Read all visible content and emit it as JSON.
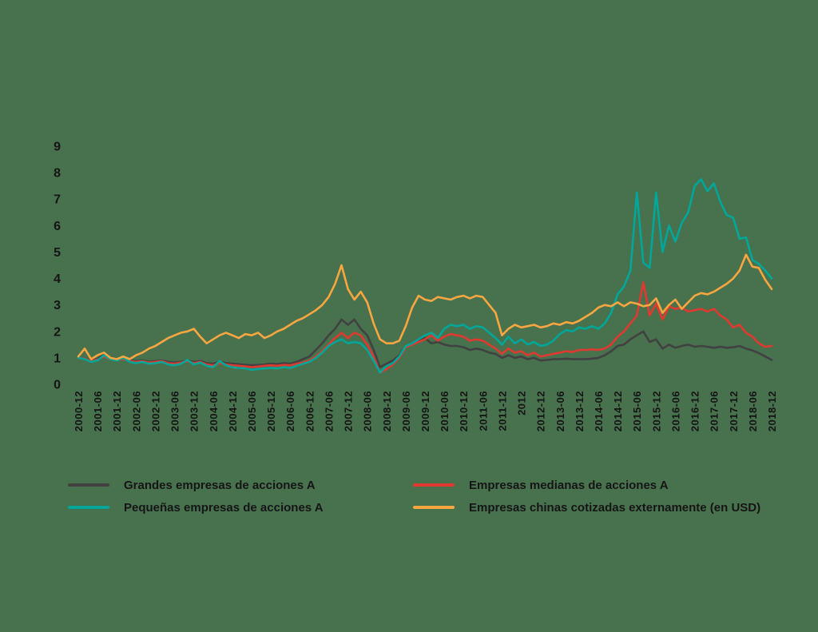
{
  "background_color": "#48714E",
  "text_color": "#151515",
  "legend": {
    "items": [
      {
        "id": "grandes",
        "label": "Grandes empresas de acciones A",
        "color": "#414141"
      },
      {
        "id": "medianas",
        "label": "Empresas medianas de acciones A",
        "color": "#E0392F"
      },
      {
        "id": "pequenas",
        "label": "Pequeñas empresas de acciones A",
        "color": "#00A79B"
      },
      {
        "id": "chinas",
        "label": "Empresas chinas cotizadas externamente (en USD)",
        "color": "#F9A640"
      }
    ]
  },
  "chart_data": {
    "type": "line",
    "title": "",
    "xlabel": "",
    "ylabel": "",
    "grid": false,
    "legend_position": "bottom",
    "ylim": [
      0,
      9
    ],
    "y_ticks": [
      0,
      1,
      2,
      3,
      4,
      5,
      6,
      7,
      8,
      9
    ],
    "x_start": "2000-12",
    "x_end": "2018-12",
    "x_step_months": 2,
    "x_tick_every_months": 6,
    "x_tick_labels": [
      "2000-12",
      "2001-06",
      "2001-12",
      "2002-06",
      "2002-12",
      "2003-06",
      "2003-12",
      "2004-06",
      "2004-12",
      "2005-06",
      "2005-12",
      "2006-06",
      "2006-12",
      "2007-06",
      "2007-12",
      "2008-06",
      "2008-12",
      "2009-06",
      "2009-12",
      "2010-06",
      "2010-12",
      "2011-06",
      "2011-12",
      "2012",
      "2012-12",
      "2013-06",
      "2013-12",
      "2014-06",
      "2014-12",
      "2015-06",
      "2015-12",
      "2016-06",
      "2016-12",
      "2017-06",
      "2017-12",
      "2018-06",
      "2018-12"
    ],
    "series": [
      {
        "id": "grandes",
        "name": "Grandes empresas de acciones A",
        "color": "#414141",
        "values": [
          1.0,
          0.97,
          0.9,
          0.95,
          1.15,
          1.0,
          0.95,
          0.97,
          0.9,
          0.88,
          0.9,
          0.85,
          0.88,
          0.9,
          0.85,
          0.82,
          0.85,
          0.9,
          0.85,
          0.88,
          0.8,
          0.78,
          0.85,
          0.8,
          0.78,
          0.76,
          0.74,
          0.72,
          0.73,
          0.75,
          0.78,
          0.76,
          0.8,
          0.78,
          0.85,
          0.95,
          1.05,
          1.3,
          1.55,
          1.85,
          2.1,
          2.45,
          2.25,
          2.45,
          2.1,
          1.85,
          1.3,
          0.65,
          0.78,
          0.9,
          1.1,
          1.45,
          1.55,
          1.65,
          1.75,
          1.55,
          1.6,
          1.5,
          1.45,
          1.45,
          1.4,
          1.3,
          1.35,
          1.3,
          1.2,
          1.15,
          1.0,
          1.1,
          1.0,
          1.05,
          0.95,
          1.0,
          0.9,
          0.92,
          0.95,
          0.95,
          0.97,
          0.95,
          0.95,
          0.95,
          0.97,
          1.0,
          1.1,
          1.25,
          1.45,
          1.5,
          1.7,
          1.85,
          2.0,
          1.6,
          1.7,
          1.35,
          1.5,
          1.38,
          1.45,
          1.5,
          1.42,
          1.45,
          1.42,
          1.38,
          1.42,
          1.38,
          1.4,
          1.45,
          1.35,
          1.28,
          1.18,
          1.05,
          0.92
        ]
      },
      {
        "id": "medianas",
        "name": "Empresas medianas de acciones A",
        "color": "#E0392F",
        "values": [
          1.0,
          0.97,
          0.88,
          0.93,
          1.05,
          0.95,
          0.92,
          0.95,
          0.88,
          0.85,
          0.88,
          0.82,
          0.85,
          0.88,
          0.8,
          0.78,
          0.82,
          0.88,
          0.8,
          0.85,
          0.75,
          0.72,
          0.8,
          0.75,
          0.72,
          0.7,
          0.68,
          0.65,
          0.67,
          0.7,
          0.72,
          0.7,
          0.73,
          0.72,
          0.78,
          0.82,
          0.9,
          1.05,
          1.25,
          1.5,
          1.75,
          1.95,
          1.75,
          1.95,
          1.85,
          1.5,
          1.05,
          0.45,
          0.57,
          0.75,
          1.0,
          1.4,
          1.5,
          1.6,
          1.7,
          1.85,
          1.65,
          1.8,
          1.9,
          1.85,
          1.8,
          1.65,
          1.7,
          1.65,
          1.5,
          1.35,
          1.15,
          1.35,
          1.2,
          1.25,
          1.1,
          1.2,
          1.05,
          1.1,
          1.15,
          1.2,
          1.25,
          1.22,
          1.3,
          1.3,
          1.32,
          1.3,
          1.35,
          1.5,
          1.8,
          2.0,
          2.3,
          2.6,
          3.85,
          2.6,
          3.05,
          2.45,
          2.95,
          2.85,
          2.9,
          2.75,
          2.8,
          2.85,
          2.75,
          2.85,
          2.6,
          2.45,
          2.15,
          2.25,
          1.95,
          1.8,
          1.55,
          1.42,
          1.45
        ]
      },
      {
        "id": "pequenas",
        "name": "Pequeñas empresas de acciones A",
        "color": "#00A79B",
        "values": [
          1.0,
          0.95,
          0.85,
          0.9,
          1.1,
          0.95,
          0.9,
          1.0,
          0.85,
          0.8,
          0.85,
          0.78,
          0.8,
          0.85,
          0.75,
          0.72,
          0.78,
          0.92,
          0.75,
          0.82,
          0.7,
          0.65,
          0.88,
          0.72,
          0.65,
          0.62,
          0.6,
          0.55,
          0.58,
          0.6,
          0.62,
          0.6,
          0.65,
          0.62,
          0.7,
          0.78,
          0.85,
          1.0,
          1.2,
          1.45,
          1.6,
          1.7,
          1.55,
          1.6,
          1.55,
          1.3,
          0.9,
          0.45,
          0.69,
          0.8,
          1.05,
          1.45,
          1.55,
          1.7,
          1.85,
          1.95,
          1.75,
          2.1,
          2.25,
          2.2,
          2.25,
          2.1,
          2.2,
          2.15,
          1.95,
          1.75,
          1.5,
          1.8,
          1.55,
          1.7,
          1.5,
          1.6,
          1.45,
          1.5,
          1.65,
          1.9,
          2.05,
          2.0,
          2.15,
          2.1,
          2.2,
          2.1,
          2.3,
          2.7,
          3.4,
          3.7,
          4.3,
          7.25,
          4.6,
          4.4,
          7.25,
          5.0,
          6.0,
          5.4,
          6.1,
          6.5,
          7.5,
          7.75,
          7.3,
          7.6,
          6.9,
          6.4,
          6.3,
          5.5,
          5.55,
          4.7,
          4.55,
          4.3,
          4.0
        ]
      },
      {
        "id": "chinas",
        "name": "Empresas chinas cotizadas externamente (en USD)",
        "color": "#F9A640",
        "values": [
          1.05,
          1.35,
          0.95,
          1.1,
          1.2,
          1.0,
          0.95,
          1.05,
          0.95,
          1.1,
          1.2,
          1.35,
          1.45,
          1.6,
          1.75,
          1.85,
          1.95,
          2.0,
          2.1,
          1.8,
          1.55,
          1.7,
          1.85,
          1.95,
          1.85,
          1.75,
          1.9,
          1.85,
          1.95,
          1.75,
          1.85,
          2.0,
          2.1,
          2.25,
          2.4,
          2.5,
          2.65,
          2.8,
          3.0,
          3.3,
          3.8,
          4.5,
          3.6,
          3.2,
          3.5,
          3.1,
          2.3,
          1.7,
          1.55,
          1.55,
          1.65,
          2.2,
          2.9,
          3.35,
          3.2,
          3.15,
          3.3,
          3.25,
          3.2,
          3.3,
          3.35,
          3.25,
          3.35,
          3.3,
          3.0,
          2.7,
          1.85,
          2.1,
          2.25,
          2.15,
          2.2,
          2.25,
          2.15,
          2.2,
          2.3,
          2.25,
          2.35,
          2.3,
          2.4,
          2.55,
          2.7,
          2.9,
          3.0,
          2.95,
          3.1,
          2.95,
          3.1,
          3.05,
          2.95,
          3.0,
          3.25,
          2.7,
          3.0,
          3.2,
          2.85,
          3.1,
          3.35,
          3.45,
          3.4,
          3.5,
          3.65,
          3.8,
          4.0,
          4.3,
          4.9,
          4.45,
          4.4,
          3.95,
          3.6
        ]
      }
    ]
  }
}
